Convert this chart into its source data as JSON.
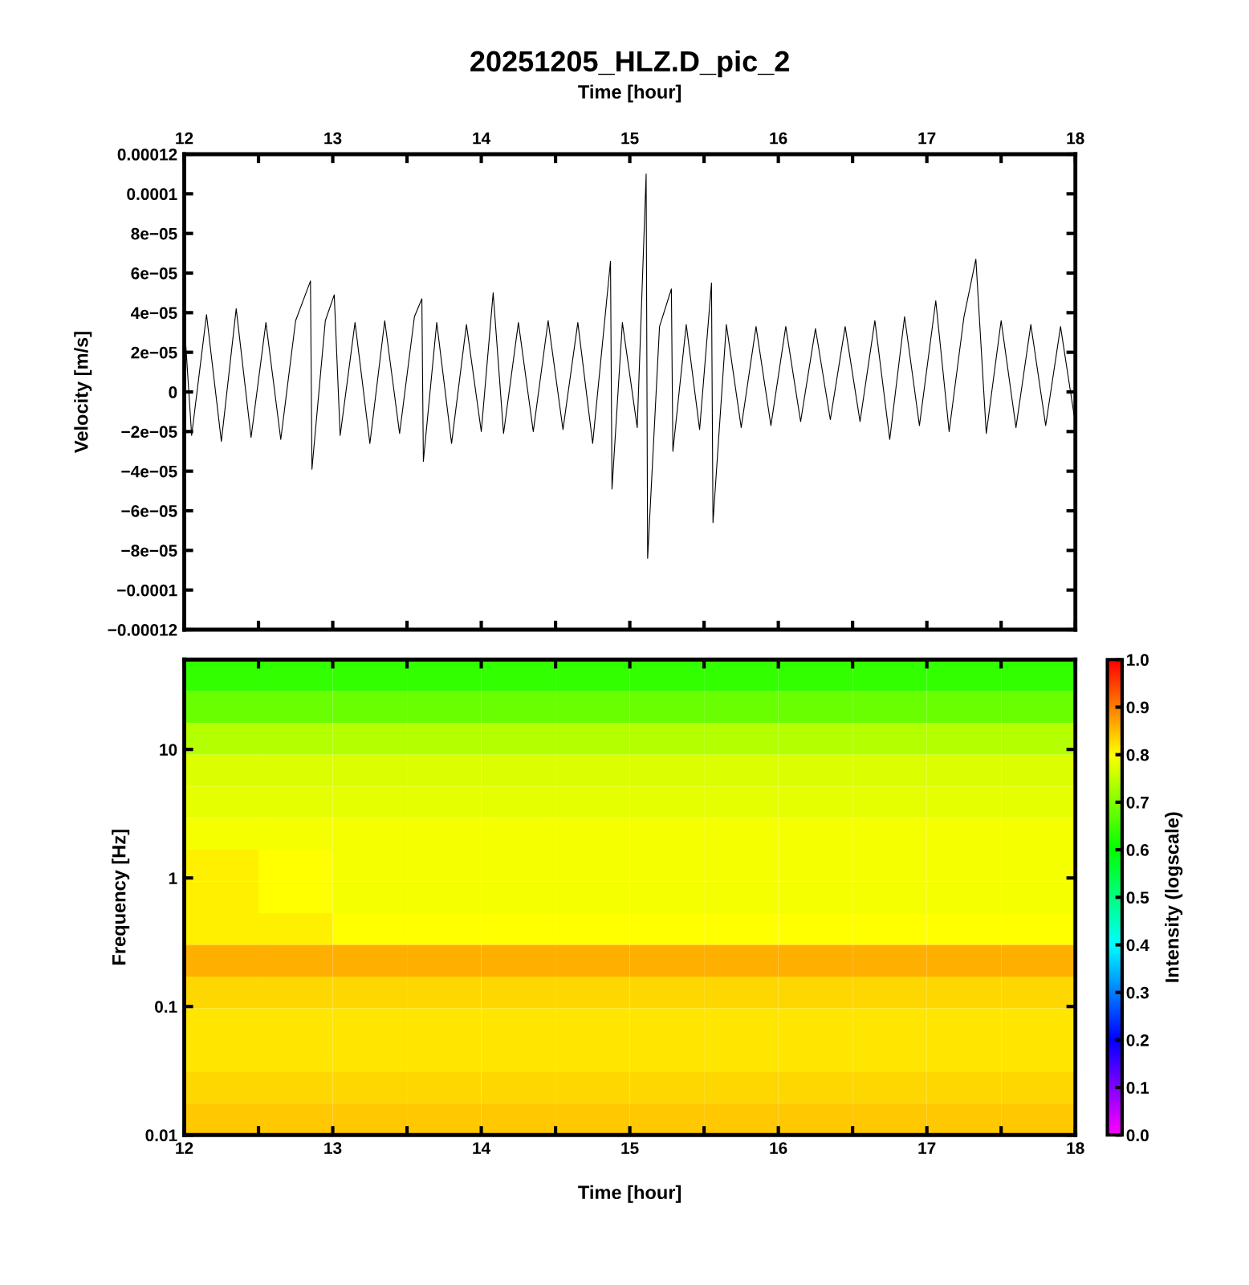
{
  "chart_data": [
    {
      "type": "line",
      "title": "20251205_HLZ.D_pic_2",
      "xlabel": "Time [hour]",
      "ylabel": "Velocity [m/s]",
      "x": [
        12.0,
        12.05,
        12.15,
        12.25,
        12.35,
        12.45,
        12.55,
        12.65,
        12.75,
        12.85,
        12.86,
        12.95,
        13.01,
        13.05,
        13.15,
        13.25,
        13.35,
        13.45,
        13.55,
        13.6,
        13.61,
        13.7,
        13.8,
        13.9,
        14.0,
        14.08,
        14.15,
        14.25,
        14.35,
        14.45,
        14.55,
        14.65,
        14.75,
        14.87,
        14.88,
        14.95,
        15.05,
        15.11,
        15.12,
        15.2,
        15.28,
        15.29,
        15.38,
        15.47,
        15.55,
        15.56,
        15.65,
        15.75,
        15.85,
        15.95,
        16.05,
        16.15,
        16.25,
        16.35,
        16.45,
        16.55,
        16.65,
        16.75,
        16.85,
        16.95,
        17.06,
        17.15,
        17.25,
        17.33,
        17.4,
        17.5,
        17.6,
        17.7,
        17.8,
        17.9,
        18.0
      ],
      "series": [
        {
          "color": "#000000",
          "values": [
            3.6e-05,
            -2.2e-05,
            3.9e-05,
            -2.5e-05,
            4.2e-05,
            -2.3e-05,
            3.5e-05,
            -2.4e-05,
            3.6e-05,
            5.6e-05,
            -3.9e-05,
            3.6e-05,
            4.9e-05,
            -2.2e-05,
            3.5e-05,
            -2.6e-05,
            3.6e-05,
            -2.1e-05,
            3.8e-05,
            4.7e-05,
            -3.5e-05,
            3.5e-05,
            -2.6e-05,
            3.4e-05,
            -2e-05,
            5e-05,
            -2.1e-05,
            3.5e-05,
            -2e-05,
            3.6e-05,
            -1.9e-05,
            3.5e-05,
            -2.6e-05,
            6.6e-05,
            -4.9e-05,
            3.5e-05,
            -1.8e-05,
            0.00011,
            -8.4e-05,
            3.3e-05,
            5.2e-05,
            -3e-05,
            3.4e-05,
            -1.9e-05,
            5.5e-05,
            -6.6e-05,
            3.4e-05,
            -1.8e-05,
            3.3e-05,
            -1.7e-05,
            3.3e-05,
            -1.5e-05,
            3.2e-05,
            -1.4e-05,
            3.3e-05,
            -1.5e-05,
            3.6e-05,
            -2.4e-05,
            3.8e-05,
            -1.7e-05,
            4.6e-05,
            -2e-05,
            3.8e-05,
            6.7e-05,
            -2.1e-05,
            3.6e-05,
            -1.8e-05,
            3.4e-05,
            -1.7e-05,
            3.3e-05,
            -1.6e-05
          ]
        }
      ],
      "xlim": [
        12,
        18
      ],
      "xticks": [
        12,
        {
          "value": 12.5,
          "label": null
        },
        13,
        {
          "value": 13.5,
          "label": null
        },
        14,
        {
          "value": 14.5,
          "label": null
        },
        15,
        {
          "value": 15.5,
          "label": null
        },
        16,
        {
          "value": 16.5,
          "label": null
        },
        17,
        {
          "value": 17.5,
          "label": null
        },
        18
      ],
      "ylim": [
        -0.00012,
        0.00012
      ],
      "yticks": [
        {
          "value": -0.00012,
          "label": "−0.00012"
        },
        {
          "value": -0.0001,
          "label": "−0.0001"
        },
        {
          "value": -8e-05,
          "label": "−8e−05"
        },
        {
          "value": -6e-05,
          "label": "−6e−05"
        },
        {
          "value": -4e-05,
          "label": "−4e−05"
        },
        {
          "value": -2e-05,
          "label": "−2e−05"
        },
        {
          "value": 0,
          "label": "0"
        },
        {
          "value": 2e-05,
          "label": "2e−05"
        },
        {
          "value": 4e-05,
          "label": "4e−05"
        },
        {
          "value": 6e-05,
          "label": "6e−05"
        },
        {
          "value": 8e-05,
          "label": "8e−05"
        },
        {
          "value": 0.0001,
          "label": "0.0001"
        },
        {
          "value": 0.00012,
          "label": "0.00012"
        }
      ],
      "grid": false,
      "legend": false
    },
    {
      "type": "heatmap",
      "xlabel": "Time [hour]",
      "ylabel": "Frequency [Hz]",
      "clabel": "Intensity (logscale)",
      "log": "y",
      "x": [
        12.25,
        12.75,
        13.25,
        13.75,
        14.25,
        14.75,
        15.25,
        15.75,
        16.25,
        16.75,
        17.25,
        17.75
      ],
      "cells": [
        [
          0.64,
          0.64,
          0.64,
          0.64,
          0.64,
          0.64,
          0.64,
          0.64,
          0.64,
          0.64,
          0.64,
          0.64
        ],
        [
          0.68,
          0.68,
          0.68,
          0.68,
          0.68,
          0.68,
          0.68,
          0.68,
          0.68,
          0.68,
          0.68,
          0.68
        ],
        [
          0.74,
          0.74,
          0.74,
          0.74,
          0.74,
          0.74,
          0.74,
          0.74,
          0.74,
          0.74,
          0.74,
          0.74
        ],
        [
          0.77,
          0.77,
          0.77,
          0.77,
          0.77,
          0.77,
          0.77,
          0.77,
          0.77,
          0.77,
          0.77,
          0.77
        ],
        [
          0.78,
          0.78,
          0.78,
          0.78,
          0.78,
          0.78,
          0.78,
          0.78,
          0.78,
          0.78,
          0.78,
          0.78
        ],
        [
          0.79,
          0.79,
          0.79,
          0.79,
          0.79,
          0.79,
          0.79,
          0.79,
          0.79,
          0.79,
          0.79,
          0.79
        ],
        [
          0.81,
          0.8,
          0.79,
          0.79,
          0.79,
          0.79,
          0.79,
          0.79,
          0.79,
          0.79,
          0.79,
          0.79
        ],
        [
          0.81,
          0.8,
          0.79,
          0.79,
          0.79,
          0.79,
          0.79,
          0.79,
          0.79,
          0.79,
          0.79,
          0.79
        ],
        [
          0.81,
          0.81,
          0.8,
          0.8,
          0.8,
          0.8,
          0.8,
          0.8,
          0.8,
          0.8,
          0.8,
          0.8
        ],
        [
          0.86,
          0.86,
          0.86,
          0.86,
          0.86,
          0.86,
          0.86,
          0.86,
          0.86,
          0.86,
          0.86,
          0.86
        ],
        [
          0.83,
          0.83,
          0.83,
          0.83,
          0.83,
          0.83,
          0.83,
          0.83,
          0.83,
          0.83,
          0.83,
          0.83
        ],
        [
          0.82,
          0.82,
          0.82,
          0.82,
          0.82,
          0.82,
          0.82,
          0.82,
          0.82,
          0.82,
          0.82,
          0.82
        ],
        [
          0.82,
          0.82,
          0.82,
          0.82,
          0.82,
          0.82,
          0.82,
          0.82,
          0.82,
          0.82,
          0.82,
          0.82
        ],
        [
          0.83,
          0.83,
          0.83,
          0.83,
          0.83,
          0.83,
          0.83,
          0.83,
          0.83,
          0.83,
          0.83,
          0.83
        ],
        [
          0.84,
          0.84,
          0.84,
          0.84,
          0.84,
          0.84,
          0.84,
          0.84,
          0.84,
          0.84,
          0.84,
          0.84
        ]
      ],
      "xlim": [
        12,
        18
      ],
      "xticks": [
        12,
        {
          "value": 12.5,
          "label": null
        },
        13,
        {
          "value": 13.5,
          "label": null
        },
        14,
        {
          "value": 14.5,
          "label": null
        },
        15,
        {
          "value": 15.5,
          "label": null
        },
        16,
        {
          "value": 16.5,
          "label": null
        },
        17,
        {
          "value": 17.5,
          "label": null
        },
        18
      ],
      "ylim": [
        0.01,
        50
      ],
      "yticks": [
        0.01,
        0.1,
        1,
        10
      ],
      "clim": [
        0,
        1
      ],
      "cticks": [
        {
          "value": 0,
          "label": "0.0"
        },
        {
          "value": 0.1,
          "label": "0.1"
        },
        {
          "value": 0.2,
          "label": "0.2"
        },
        {
          "value": 0.3,
          "label": "0.3"
        },
        {
          "value": 0.4,
          "label": "0.4"
        },
        {
          "value": 0.5,
          "label": "0.5"
        },
        {
          "value": 0.6,
          "label": "0.6"
        },
        {
          "value": 0.7,
          "label": "0.7"
        },
        {
          "value": 0.8,
          "label": "0.8"
        },
        {
          "value": 0.9,
          "label": "0.9"
        },
        {
          "value": 1,
          "label": "1.0"
        }
      ]
    }
  ]
}
